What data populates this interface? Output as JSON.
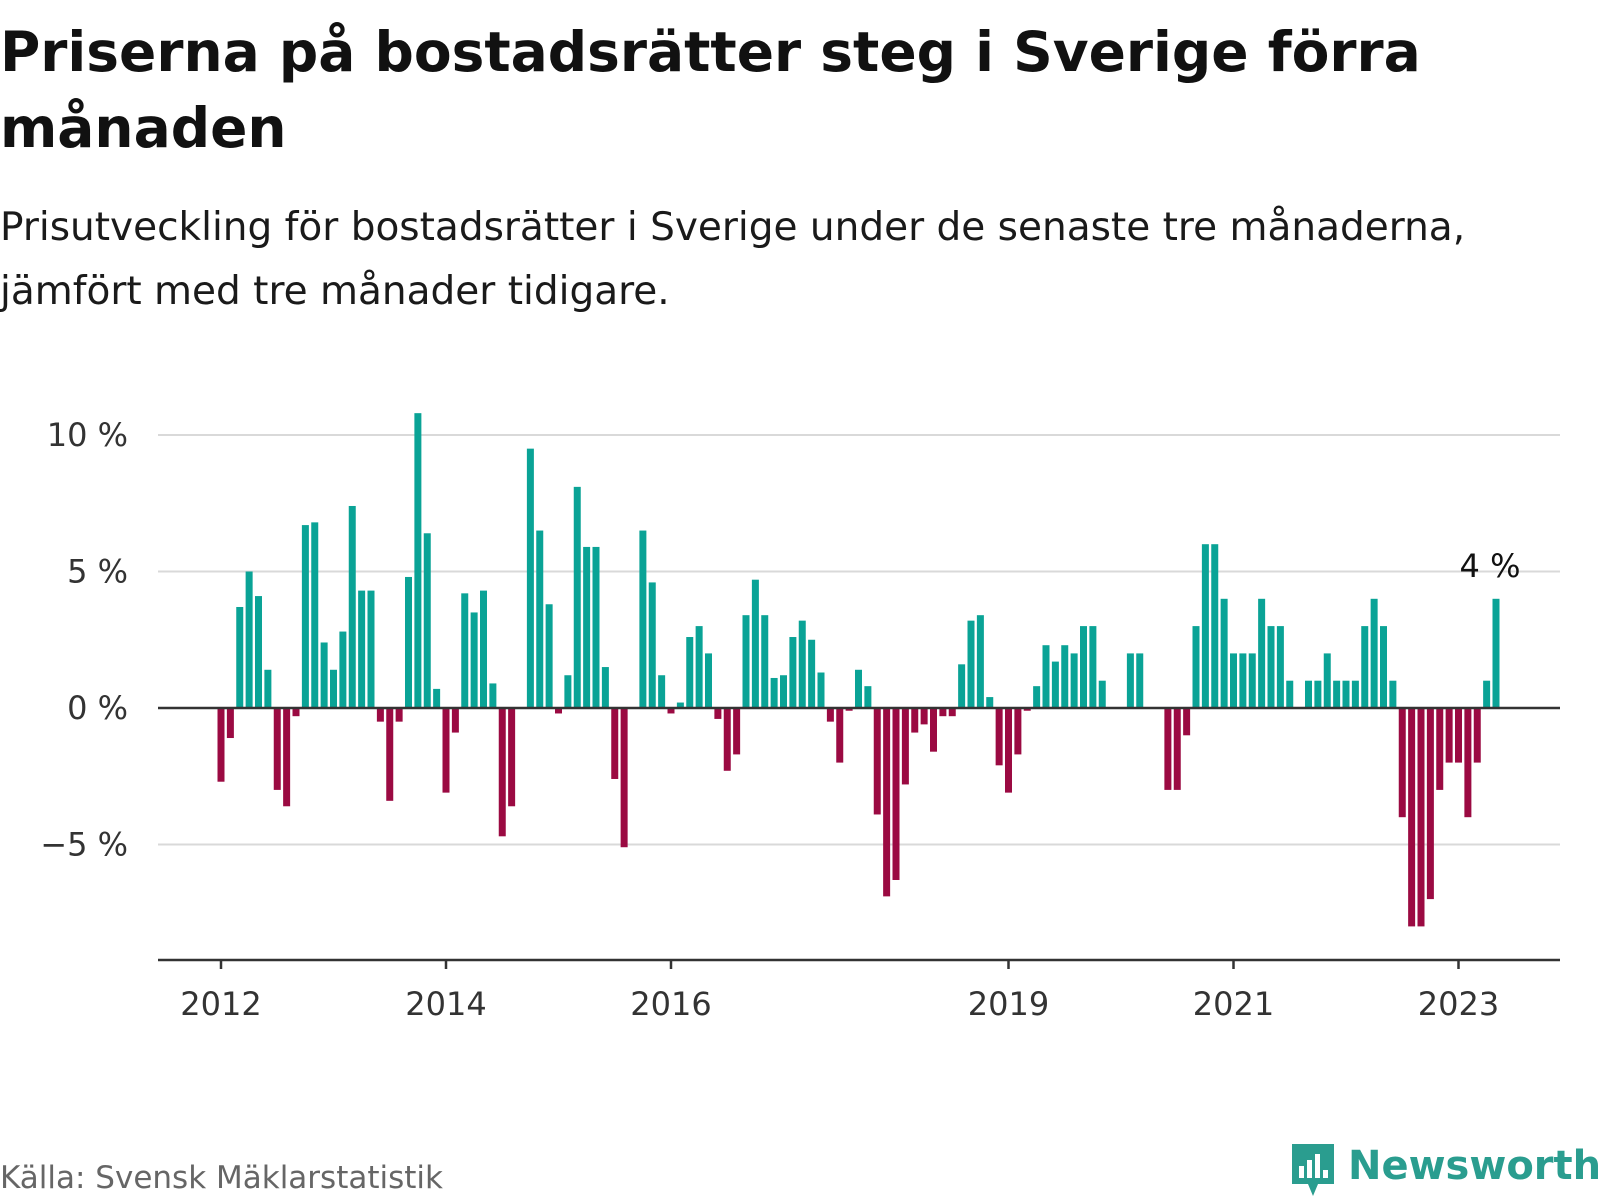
{
  "title": "Priserna på bostadsrätter steg i Sverige förra månaden",
  "subtitle": "Prisutveckling för bostadsrätter i Sverige under de senaste tre månaderna, jämfört med tre månader tidigare.",
  "source": "Källa: Svensk Mäklarstatistik",
  "brand": "Newsworthy",
  "colors": {
    "positive": "#0aa396",
    "negative": "#9b0a42",
    "grid": "#d9d9d9",
    "axis": "#333333",
    "brand": "#2a9d8f"
  },
  "chart_data": {
    "type": "bar",
    "unit": "%",
    "ylim": [
      -9,
      11
    ],
    "y_ticks": [
      -5,
      0,
      5,
      10
    ],
    "y_tick_labels": [
      "−5 %",
      "0 %",
      "5 %",
      "10 %"
    ],
    "x_ticks": [
      {
        "year": 2012,
        "label": "2012"
      },
      {
        "year": 2014,
        "label": "2014"
      },
      {
        "year": 2016,
        "label": "2016"
      },
      {
        "year": 2019,
        "label": "2019"
      },
      {
        "year": 2021,
        "label": "2021"
      },
      {
        "year": 2023,
        "label": "2023"
      }
    ],
    "start_month": "2012-01",
    "end_month": "2023-03",
    "last_value_label": "4 %",
    "grid": true,
    "values": [
      -2.7,
      -1.1,
      3.7,
      5.0,
      4.1,
      1.4,
      -3.0,
      -3.6,
      -0.3,
      6.7,
      6.8,
      2.4,
      1.4,
      2.8,
      7.4,
      4.3,
      4.3,
      -0.5,
      -3.4,
      -0.5,
      4.8,
      10.8,
      6.4,
      0.7,
      -3.1,
      -0.9,
      4.2,
      3.5,
      4.3,
      0.9,
      -4.7,
      -3.6,
      0.0,
      9.5,
      6.5,
      3.8,
      -0.2,
      1.2,
      8.1,
      5.9,
      5.9,
      1.5,
      -2.6,
      -5.1,
      0.0,
      6.5,
      4.6,
      1.2,
      -0.2,
      0.2,
      2.6,
      3.0,
      2.0,
      -0.4,
      -2.3,
      -1.7,
      3.4,
      4.7,
      3.4,
      1.1,
      1.2,
      2.6,
      3.2,
      2.5,
      1.3,
      -0.5,
      -2.0,
      -0.1,
      1.4,
      0.8,
      -3.9,
      -6.9,
      -6.3,
      -2.8,
      -0.9,
      -0.6,
      -1.6,
      -0.3,
      -0.3,
      1.6,
      3.2,
      3.4,
      0.4,
      -2.1,
      -3.1,
      -1.7,
      -0.1,
      0.8,
      2.3,
      1.7,
      2.3,
      2.0,
      3.0,
      3.0,
      1.0,
      0.0,
      0.0,
      2.0,
      2.0,
      0.0,
      0.0,
      -3.0,
      -3.0,
      -1.0,
      3.0,
      6.0,
      6.0,
      4.0,
      2.0,
      2.0,
      2.0,
      4.0,
      3.0,
      3.0,
      1.0,
      0.0,
      1.0,
      1.0,
      2.0,
      1.0,
      1.0,
      1.0,
      3.0,
      4.0,
      3.0,
      1.0,
      -4.0,
      -8.0,
      -8.0,
      -7.0,
      -3.0,
      -2.0,
      -2.0,
      -4.0,
      -2.0,
      1.0,
      4.0
    ]
  }
}
